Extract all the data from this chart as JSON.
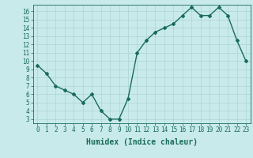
{
  "x": [
    0,
    1,
    2,
    3,
    4,
    5,
    6,
    7,
    8,
    9,
    10,
    11,
    12,
    13,
    14,
    15,
    16,
    17,
    18,
    19,
    20,
    21,
    22,
    23
  ],
  "y": [
    9.5,
    8.5,
    7,
    6.5,
    6,
    5,
    6,
    4,
    3,
    3,
    5.5,
    11,
    12.5,
    13.5,
    14,
    14.5,
    15.5,
    16.5,
    15.5,
    15.5,
    16.5,
    15.5,
    12.5,
    10
  ],
  "line_color": "#1a6b5a",
  "bg_color": "#c8eaea",
  "grid_color": "#aed4d4",
  "xlabel": "Humidex (Indice chaleur)",
  "xlim": [
    -0.5,
    23.5
  ],
  "ylim": [
    2.5,
    16.8
  ],
  "yticks": [
    3,
    4,
    5,
    6,
    7,
    8,
    9,
    10,
    11,
    12,
    13,
    14,
    15,
    16
  ],
  "xticks": [
    0,
    1,
    2,
    3,
    4,
    5,
    6,
    7,
    8,
    9,
    10,
    11,
    12,
    13,
    14,
    15,
    16,
    17,
    18,
    19,
    20,
    21,
    22,
    23
  ],
  "marker": "D",
  "marker_size": 2,
  "line_width": 1.0,
  "font_color": "#1a6b5a",
  "tick_fontsize": 5.5,
  "xlabel_fontsize": 7
}
